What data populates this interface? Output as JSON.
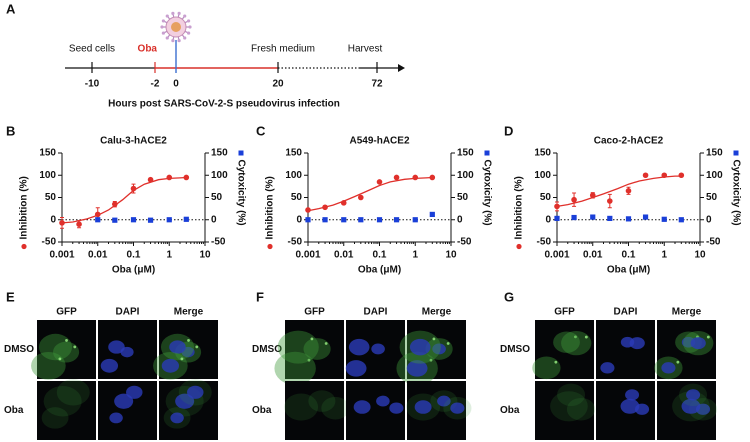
{
  "panel_labels": [
    "A",
    "B",
    "C",
    "D",
    "E",
    "F",
    "G"
  ],
  "timeline": {
    "ticks": [
      -10,
      -2,
      0,
      20,
      72
    ],
    "events": [
      "Seed cells",
      "Oba",
      null,
      "Fresh medium",
      "Harvest"
    ],
    "xlabel": "Hours post SARS-CoV-2-S pseudovirus infection"
  },
  "chart_data": [
    {
      "type": "scatter",
      "title": "Calu-3-hACE2",
      "xlabel": "Oba (μM)",
      "xscale": "log",
      "xlim": [
        0.001,
        10
      ],
      "xticks": [
        0.001,
        0.01,
        0.1,
        1,
        10
      ],
      "ylim": [
        -50,
        150
      ],
      "yticks": [
        -50,
        0,
        50,
        100,
        150
      ],
      "y2lim": [
        -50,
        150
      ],
      "y2ticks": [
        -50,
        0,
        50,
        100,
        150
      ],
      "x": [
        0.001,
        0.003,
        0.01,
        0.03,
        0.1,
        0.3,
        1,
        3
      ],
      "series": [
        {
          "name": "Inhibition (%)",
          "color": "#e0302b",
          "values": [
            -7,
            -10,
            12,
            35,
            70,
            90,
            95,
            95
          ],
          "errors": [
            12,
            8,
            15,
            6,
            10,
            3,
            2,
            2
          ],
          "fit": {
            "x": [
              0.001,
              0.002,
              0.005,
              0.01,
              0.02,
              0.05,
              0.1,
              0.2,
              0.5,
              1,
              2,
              3
            ],
            "values": [
              -7,
              -5,
              2,
              10,
              22,
              45,
              66,
              80,
              90,
              93,
              94,
              95
            ]
          }
        },
        {
          "name": "Cytoxicity (%)",
          "color": "#1a3fd8",
          "axis": "y2",
          "values": [
            null,
            null,
            0,
            -1,
            0,
            -1,
            0,
            1
          ]
        }
      ]
    },
    {
      "type": "scatter",
      "title": "A549-hACE2",
      "xlabel": "Oba (μM)",
      "xscale": "log",
      "xlim": [
        0.001,
        10
      ],
      "xticks": [
        0.001,
        0.01,
        0.1,
        1,
        10
      ],
      "ylim": [
        -50,
        150
      ],
      "yticks": [
        -50,
        0,
        50,
        100,
        150
      ],
      "y2lim": [
        -50,
        150
      ],
      "y2ticks": [
        -50,
        0,
        50,
        100,
        150
      ],
      "x": [
        0.001,
        0.003,
        0.01,
        0.03,
        0.1,
        0.3,
        1,
        3
      ],
      "series": [
        {
          "name": "Inhibition (%)",
          "color": "#e0302b",
          "values": [
            22,
            28,
            38,
            50,
            85,
            95,
            95,
            95
          ],
          "errors": [
            2,
            2,
            3,
            2,
            3,
            2,
            2,
            2
          ],
          "fit": {
            "x": [
              0.001,
              0.002,
              0.005,
              0.01,
              0.02,
              0.05,
              0.1,
              0.2,
              0.5,
              1,
              2,
              3
            ],
            "values": [
              20,
              25,
              33,
              42,
              52,
              66,
              77,
              85,
              91,
              93,
              94,
              95
            ]
          }
        },
        {
          "name": "Cytoxicity (%)",
          "color": "#1a3fd8",
          "axis": "y2",
          "values": [
            0,
            0,
            0,
            0,
            0,
            0,
            0,
            12
          ]
        }
      ]
    },
    {
      "type": "scatter",
      "title": "Caco-2-hACE2",
      "xlabel": "Oba (μM)",
      "xscale": "log",
      "xlim": [
        0.001,
        10
      ],
      "xticks": [
        0.001,
        0.01,
        0.1,
        1,
        10
      ],
      "ylim": [
        -50,
        150
      ],
      "yticks": [
        -50,
        0,
        50,
        100,
        150
      ],
      "y2lim": [
        -50,
        150
      ],
      "y2ticks": [
        -50,
        0,
        50,
        100,
        150
      ],
      "x": [
        0.001,
        0.003,
        0.01,
        0.03,
        0.1,
        0.3,
        1,
        3
      ],
      "series": [
        {
          "name": "Inhibition (%)",
          "color": "#e0302b",
          "values": [
            30,
            45,
            55,
            42,
            65,
            100,
            100,
            100
          ],
          "errors": [
            10,
            15,
            6,
            15,
            8,
            2,
            2,
            2
          ],
          "fit": {
            "x": [
              0.001,
              0.002,
              0.005,
              0.01,
              0.02,
              0.05,
              0.1,
              0.2,
              0.5,
              1,
              2,
              3
            ],
            "values": [
              30,
              34,
              42,
              50,
              58,
              70,
              80,
              87,
              93,
              96,
              98,
              98
            ]
          }
        },
        {
          "name": "Cytoxicity (%)",
          "color": "#1a3fd8",
          "axis": "y2",
          "values": [
            3,
            5,
            6,
            3,
            2,
            6,
            1,
            0
          ]
        }
      ]
    }
  ],
  "micrographs": [
    {
      "columns": [
        "GFP",
        "DAPI",
        "Merge"
      ],
      "rows": [
        "DMSO",
        "Oba"
      ]
    },
    {
      "columns": [
        "GFP",
        "DAPI",
        "Merge"
      ],
      "rows": [
        "DMSO",
        "Oba"
      ]
    },
    {
      "columns": [
        "GFP",
        "DAPI",
        "Merge"
      ],
      "rows": [
        "DMSO",
        "Oba"
      ]
    }
  ]
}
